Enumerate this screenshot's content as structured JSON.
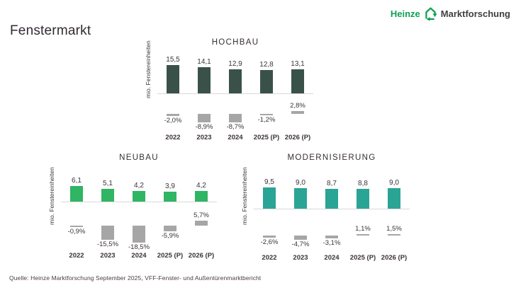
{
  "page": {
    "title": "Fenstermarkt"
  },
  "logo": {
    "brand": "Heinze",
    "suffix": "Marktforschung",
    "brand_color": "#0ba152",
    "suffix_color": "#3f3f42"
  },
  "colors": {
    "hochbau_bar": "#3a514a",
    "neubau_bar": "#2fb563",
    "modernisierung_bar": "#2aa495",
    "change_bar": "#a6a6a6",
    "baseline": "#d9d9d9",
    "text": "#3a3238",
    "logo_green": "#0ba152"
  },
  "chart_data": [
    {
      "id": "hochbau",
      "type": "bar",
      "title": "HOCHBAU",
      "ylabel": "mio. Fenstereinheiten",
      "categories": [
        "2022",
        "2023",
        "2024",
        "2025 (P)",
        "2026 (P)"
      ],
      "values": [
        15.5,
        14.1,
        12.9,
        12.8,
        13.1
      ],
      "value_labels": [
        "15,5",
        "14,1",
        "12,9",
        "12,8",
        "13,1"
      ],
      "bar_color": "#3a514a",
      "change_series": {
        "name": "change-percent",
        "values": [
          -2.0,
          -8.9,
          -8.7,
          -1.2,
          2.8
        ],
        "labels": [
          "-2,0%",
          "-8,9%",
          "-8,7%",
          "-1,2%",
          "2,8%"
        ],
        "bar_color": "#a6a6a6"
      },
      "ylim": [
        0,
        16
      ],
      "grid": false,
      "legend": false
    },
    {
      "id": "neubau",
      "type": "bar",
      "title": "NEUBAU",
      "ylabel": "mio. Fenstereinheiten",
      "categories": [
        "2022",
        "2023",
        "2024",
        "2025 (P)",
        "2026 (P)"
      ],
      "values": [
        6.1,
        5.1,
        4.2,
        3.9,
        4.2
      ],
      "value_labels": [
        "6,1",
        "5,1",
        "4,2",
        "3,9",
        "4,2"
      ],
      "bar_color": "#2fb563",
      "change_series": {
        "name": "change-percent",
        "values": [
          -0.9,
          -15.5,
          -18.5,
          -5.9,
          5.7
        ],
        "labels": [
          "-0,9%",
          "-15,5%",
          "-18,5%",
          "-5,9%",
          "5,7%"
        ],
        "bar_color": "#a6a6a6"
      },
      "ylim": [
        0,
        7
      ],
      "grid": false,
      "legend": false
    },
    {
      "id": "modernisierung",
      "type": "bar",
      "title": "MODERNISIERUNG",
      "ylabel": "mio. Fenstereinheiten",
      "categories": [
        "2022",
        "2023",
        "2024",
        "2025 (P)",
        "2026 (P)"
      ],
      "values": [
        9.5,
        9.0,
        8.7,
        8.8,
        9.0
      ],
      "value_labels": [
        "9,5",
        "9,0",
        "8,7",
        "8,8",
        "9,0"
      ],
      "bar_color": "#2aa495",
      "change_series": {
        "name": "change-percent",
        "values": [
          -2.6,
          -4.7,
          -3.1,
          1.1,
          1.5
        ],
        "labels": [
          "-2,6%",
          "-4,7%",
          "-3,1%",
          "1,1%",
          "1,5%"
        ],
        "bar_color": "#a6a6a6"
      },
      "ylim": [
        0,
        10
      ],
      "grid": false,
      "legend": false
    }
  ],
  "footer": {
    "source": "Quelle: Heinze Marktforschung September 2025, VFF-Fenster- und Außentürenmarktbericht"
  }
}
